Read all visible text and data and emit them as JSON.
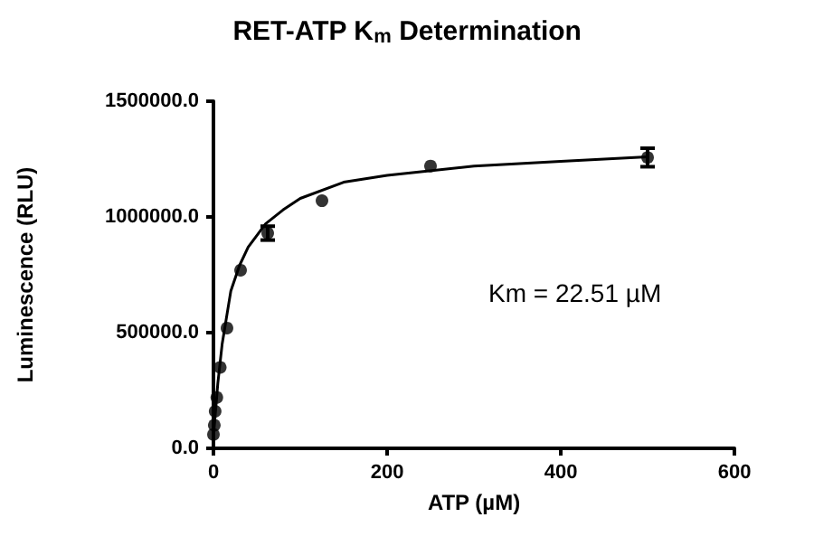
{
  "chart_data": {
    "type": "scatter",
    "title": "RET-ATP K$_{m}$ Determination",
    "xlabel": "ATP (µM)",
    "ylabel": "Luminescence (RLU)",
    "annotations": [
      "Km = 22.51 µM"
    ],
    "series": [
      {
        "color": "#000000",
        "marker": "circle",
        "x": [
          0,
          0.98,
          1.95,
          3.9,
          7.8,
          15.6,
          31.25,
          62.5,
          125,
          250,
          500
        ],
        "values": [
          60000,
          100000,
          160000,
          220000,
          350000,
          520000,
          770000,
          930000,
          1070000,
          1220000,
          1257000
        ],
        "errors": [
          null,
          null,
          null,
          null,
          null,
          null,
          null,
          30000,
          null,
          null,
          40000
        ]
      },
      {
        "type": "line",
        "color": "#000000",
        "marker": "none",
        "line_style": "solid",
        "x": [
          0,
          5,
          10,
          20,
          30,
          40,
          60,
          80,
          100,
          150,
          200,
          300,
          400,
          500
        ],
        "values": [
          50000,
          280000,
          450000,
          680000,
          790000,
          870000,
          970000,
          1030000,
          1080000,
          1150000,
          1180000,
          1220000,
          1240000,
          1260000
        ]
      }
    ],
    "xlim": [
      0,
      600
    ],
    "xticks": [
      0,
      200,
      400,
      600
    ],
    "ylim": [
      0,
      1500000
    ],
    "yticks": [
      {
        "value": 0,
        "label": "0.0"
      },
      {
        "value": 500000,
        "label": "500000.0"
      },
      {
        "value": 1000000,
        "label": "1000000.0"
      },
      {
        "value": 1500000,
        "label": "1500000.0"
      }
    ],
    "grid": false
  }
}
